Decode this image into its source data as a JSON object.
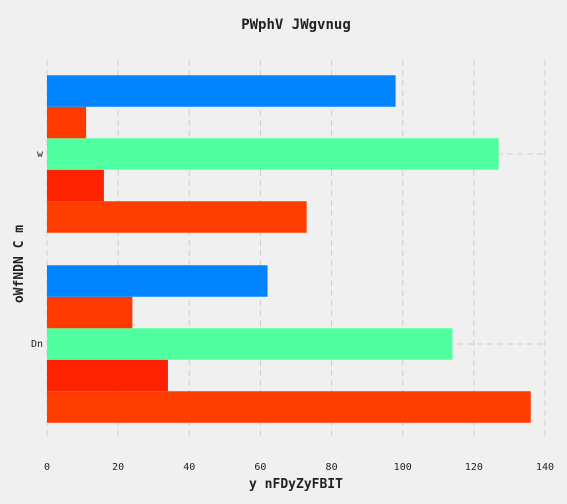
{
  "chart_data": {
    "type": "bar",
    "orientation": "horizontal",
    "title": "PWphV JWgvnug",
    "xlabel": "y nFDyZyFBIT",
    "ylabel": "oWfNDN  C  m",
    "categories": [
      "Dn",
      "w"
    ],
    "xlim": [
      0,
      140
    ],
    "xticks": [
      0,
      20,
      40,
      60,
      80,
      100,
      120,
      140
    ],
    "grid": true,
    "series": [
      {
        "values": [
          136,
          73
        ],
        "color": "#ff3d00"
      },
      {
        "values": [
          34,
          16
        ],
        "color": "#ff2200"
      },
      {
        "values": [
          114,
          127
        ],
        "color": "#50ffa0"
      },
      {
        "values": [
          24,
          11
        ],
        "color": "#ff3a00"
      },
      {
        "values": [
          62,
          98
        ],
        "color": "#0084ff"
      }
    ]
  }
}
